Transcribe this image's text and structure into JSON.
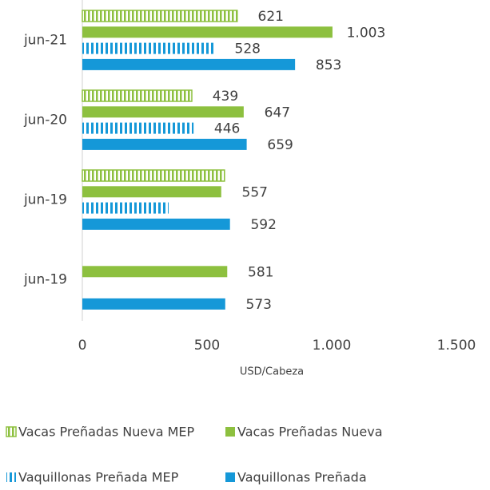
{
  "chart_data": {
    "type": "bar",
    "orientation": "horizontal",
    "categories": [
      "jun-21",
      "jun-20",
      "jun-19",
      "jun-19"
    ],
    "series": [
      {
        "name": "Vacas Preñadas Nueva MEP",
        "color": "#8dc03f",
        "fill": "hatched-outline",
        "values": [
          621,
          439,
          570,
          null
        ],
        "value_labels": [
          "621",
          "439",
          null,
          null
        ]
      },
      {
        "name": "Vacas Preñadas Nueva",
        "color": "#8dc03f",
        "fill": "solid",
        "values": [
          1003,
          647,
          557,
          581
        ],
        "value_labels": [
          "1.003",
          "647",
          "557",
          "581"
        ]
      },
      {
        "name": "Vaquillonas Preñada MEP",
        "color": "#1598d8",
        "fill": "striped",
        "values": [
          528,
          446,
          346,
          null
        ],
        "value_labels": [
          "528",
          "446",
          null,
          null
        ]
      },
      {
        "name": "Vaquillonas Preñada",
        "color": "#1598d8",
        "fill": "solid",
        "values": [
          853,
          659,
          592,
          573
        ],
        "value_labels": [
          "853",
          "659",
          "592",
          "573"
        ]
      }
    ],
    "xlim": [
      0,
      1500
    ],
    "xticks": [
      0,
      500,
      {
        "value": 1000,
        "label": "1.000"
      },
      {
        "value": 1500,
        "label": "1.500"
      }
    ],
    "xlabel": "USD/Cabeza",
    "legend": "bottom"
  }
}
